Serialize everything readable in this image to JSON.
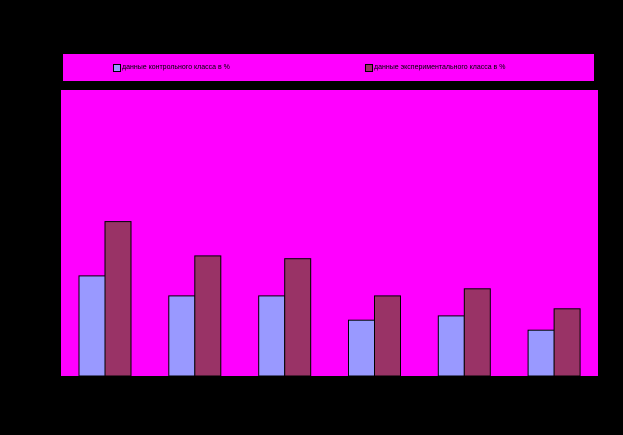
{
  "colors": {
    "background": "#000000",
    "plot_area": "#ff00ff",
    "legend_area": "#ff00ff",
    "series_1": "#9999ff",
    "series_2": "#993366",
    "bar_outline": "#000000"
  },
  "legend": {
    "position": "top",
    "items": [
      {
        "label": "данные контрольного класса в %"
      },
      {
        "label": "данные экспериментального класса в %"
      }
    ]
  },
  "chart_data": {
    "type": "bar",
    "title": "",
    "xlabel": "",
    "ylabel": "",
    "grid": false,
    "ylim": [
      0,
      100
    ],
    "categories": [
      "",
      "",
      "",
      "",
      "",
      ""
    ],
    "series": [
      {
        "name": "данные контрольного класса в %",
        "values": [
          35,
          28,
          28,
          19.5,
          21,
          16
        ]
      },
      {
        "name": "данные экспериментального класса в %",
        "values": [
          54,
          42,
          41,
          28,
          30.5,
          23.5
        ]
      }
    ]
  }
}
